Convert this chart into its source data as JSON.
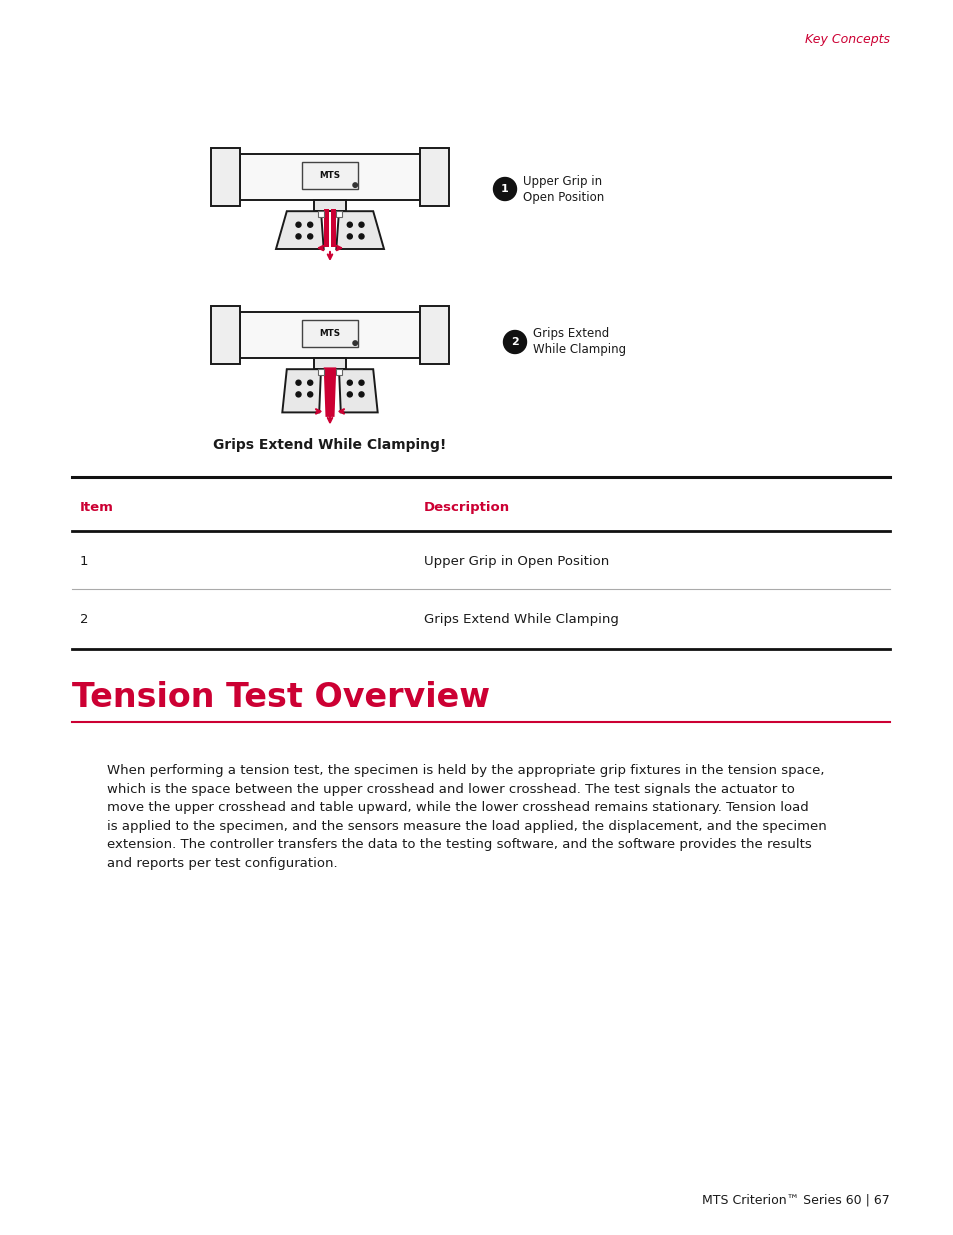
{
  "page_width": 9.54,
  "page_height": 12.35,
  "bg_color": "#ffffff",
  "header_text": "Key Concepts",
  "header_color": "#cc0033",
  "header_fontsize": 9,
  "caption_text": "Grips Extend While Clamping!",
  "caption_fontsize": 10,
  "table_header_item": "Item",
  "table_header_desc": "Description",
  "table_header_color": "#cc0033",
  "table_rows": [
    {
      "item": "1",
      "desc": "Upper Grip in Open Position"
    },
    {
      "item": "2",
      "desc": "Grips Extend While Clamping"
    }
  ],
  "section_title": "Tension Test Overview",
  "section_title_color": "#cc0033",
  "section_title_fontsize": 24,
  "section_line_color": "#cc0033",
  "body_text": "When performing a tension test, the specimen is held by the appropriate grip fixtures in the tension space,\nwhich is the space between the upper crosshead and lower crosshead. The test signals the actuator to\nmove the upper crosshead and table upward, while the lower crosshead remains stationary. Tension load\nis applied to the specimen, and the sensors measure the load applied, the displacement, and the specimen\nextension. The controller transfers the data to the testing software, and the software provides the results\nand reports per test configuration.",
  "body_fontsize": 9.5,
  "footer_text": "MTS Criterion™ Series 60 | 67",
  "footer_fontsize": 9,
  "label1_title": "Upper Grip in\nOpen Position",
  "label2_title": "Grips Extend\nWhile Clamping",
  "arrow_color": "#cc0033"
}
